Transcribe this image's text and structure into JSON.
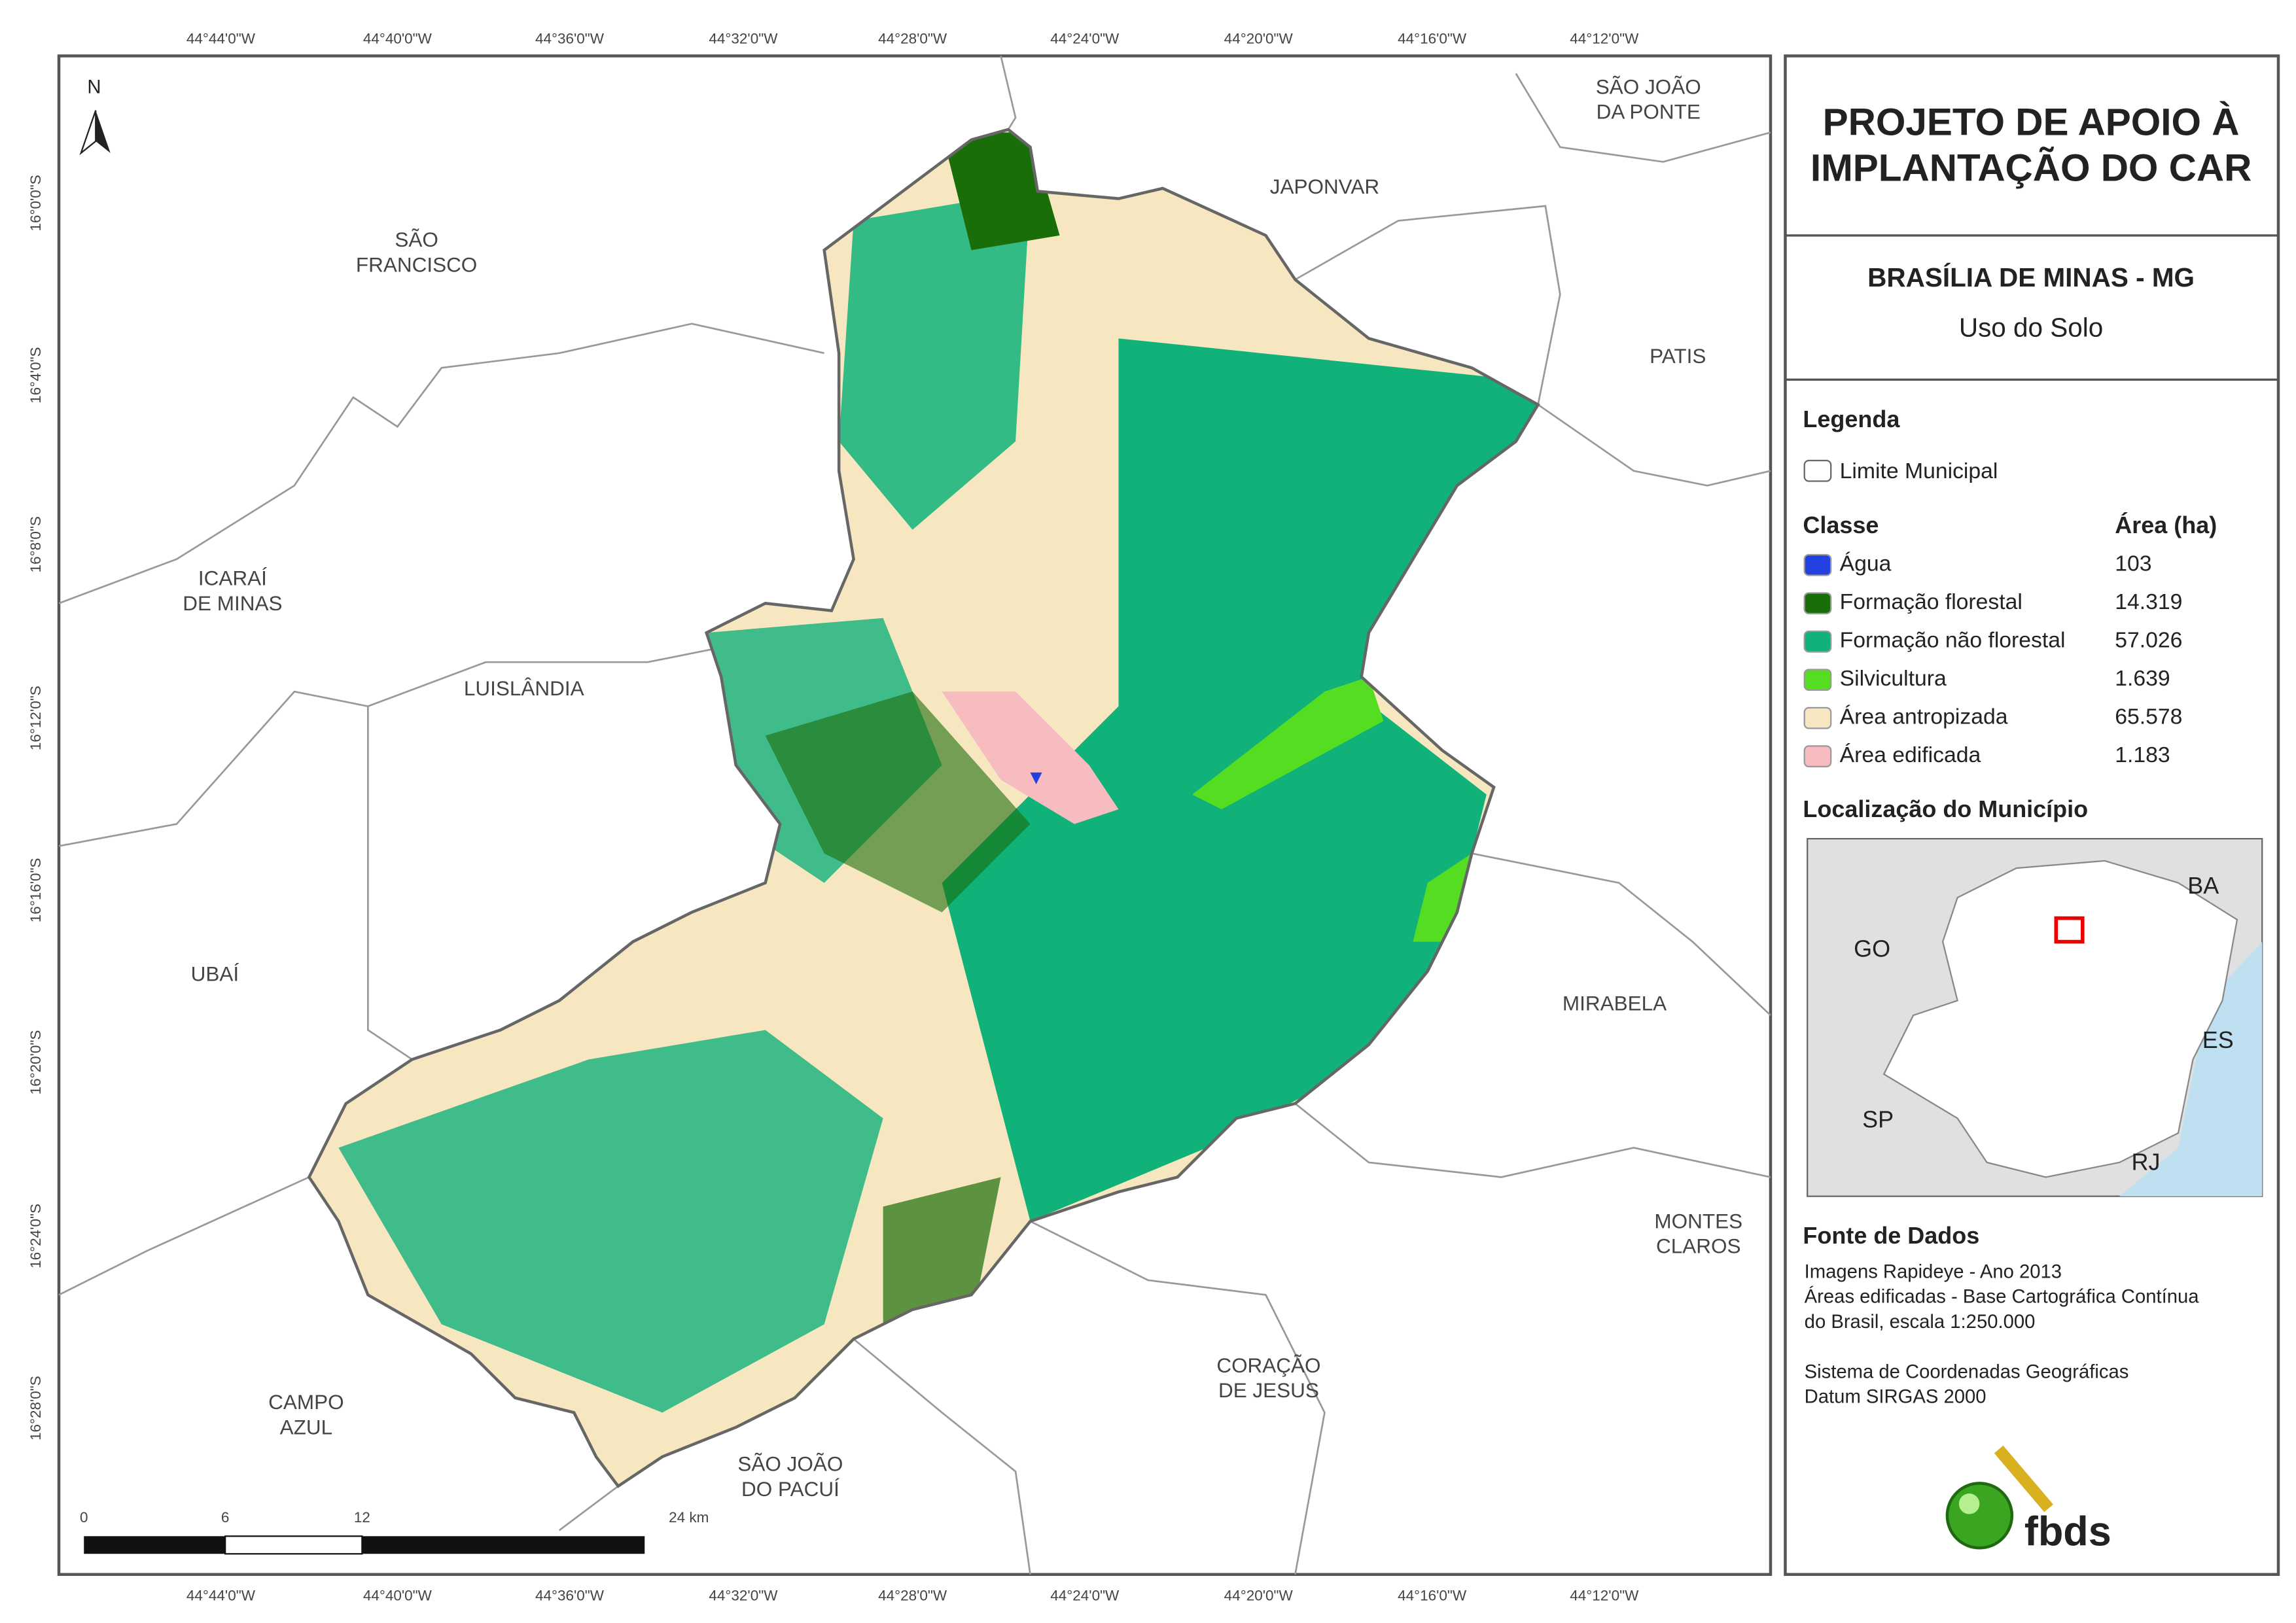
{
  "panel": {
    "title": [
      "PROJETO DE APOIO À",
      "IMPLANTAÇÃO DO CAR"
    ],
    "subtitle": "BRASÍLIA DE MINAS - MG",
    "theme": "Uso do Solo"
  },
  "legend": {
    "heading": "Legenda",
    "boundary": "Limite Municipal",
    "class_header": "Classe",
    "area_header": "Área (ha)",
    "items": [
      {
        "label": "Água",
        "area": "103",
        "color": "#2340e0"
      },
      {
        "label": "Formação florestal",
        "area": "14.319",
        "color": "#1a6e0a"
      },
      {
        "label": "Formação não florestal",
        "area": "57.026",
        "color": "#10b27a"
      },
      {
        "label": "Silvicultura",
        "area": "1.639",
        "color": "#55dd22"
      },
      {
        "label": "Área antropizada",
        "area": "65.578",
        "color": "#f7e7c0"
      },
      {
        "label": "Área edificada",
        "area": "1.183",
        "color": "#f6bcc0"
      }
    ]
  },
  "locator": {
    "heading": "Localização do Município",
    "labels": [
      "BA",
      "GO",
      "ES",
      "SP",
      "RJ"
    ]
  },
  "sources": {
    "heading": "Fonte de Dados",
    "lines": [
      "Imagens Rapideye - Ano 2013",
      "Áreas edificadas - Base Cartográfica Contínua",
      "do Brasil, escala 1:250.000",
      "",
      "Sistema de Coordenadas Geográficas",
      "Datum SIRGAS 2000"
    ]
  },
  "logo": "fbds",
  "map": {
    "north": "N",
    "top_ticks": [
      "44°44'0\"W",
      "44°40'0\"W",
      "44°36'0\"W",
      "44°32'0\"W",
      "44°28'0\"W",
      "44°24'0\"W",
      "44°20'0\"W",
      "44°16'0\"W",
      "44°12'0\"W"
    ],
    "bottom_ticks": [
      "44°44'0\"W",
      "44°40'0\"W",
      "44°36'0\"W",
      "44°32'0\"W",
      "44°28'0\"W",
      "44°24'0\"W",
      "44°20'0\"W",
      "44°16'0\"W",
      "44°12'0\"W"
    ],
    "left_ticks": [
      "16°0'0\"S",
      "16°4'0\"S",
      "16°8'0\"S",
      "16°12'0\"S",
      "16°16'0\"S",
      "16°20'0\"S",
      "16°24'0\"S",
      "16°28'0\"S"
    ],
    "places": [
      {
        "lines": [
          "SÃO JOÃO",
          "DA PONTE"
        ]
      },
      {
        "lines": [
          "JAPONVAR"
        ]
      },
      {
        "lines": [
          "SÃO",
          "FRANCISCO"
        ]
      },
      {
        "lines": [
          "PATIS"
        ]
      },
      {
        "lines": [
          "ICARAÍ",
          "DE MINAS"
        ]
      },
      {
        "lines": [
          "LUISLÂNDIA"
        ]
      },
      {
        "lines": [
          "UBAÍ"
        ]
      },
      {
        "lines": [
          "MIRABELA"
        ]
      },
      {
        "lines": [
          "MONTES",
          "CLAROS"
        ]
      },
      {
        "lines": [
          "CORAÇÃO",
          "DE JESUS"
        ]
      },
      {
        "lines": [
          "CAMPO",
          "AZUL"
        ]
      },
      {
        "lines": [
          "SÃO JOÃO",
          "DO PACUÍ"
        ]
      }
    ],
    "scale": [
      "0",
      "6",
      "12",
      "24 km"
    ]
  }
}
